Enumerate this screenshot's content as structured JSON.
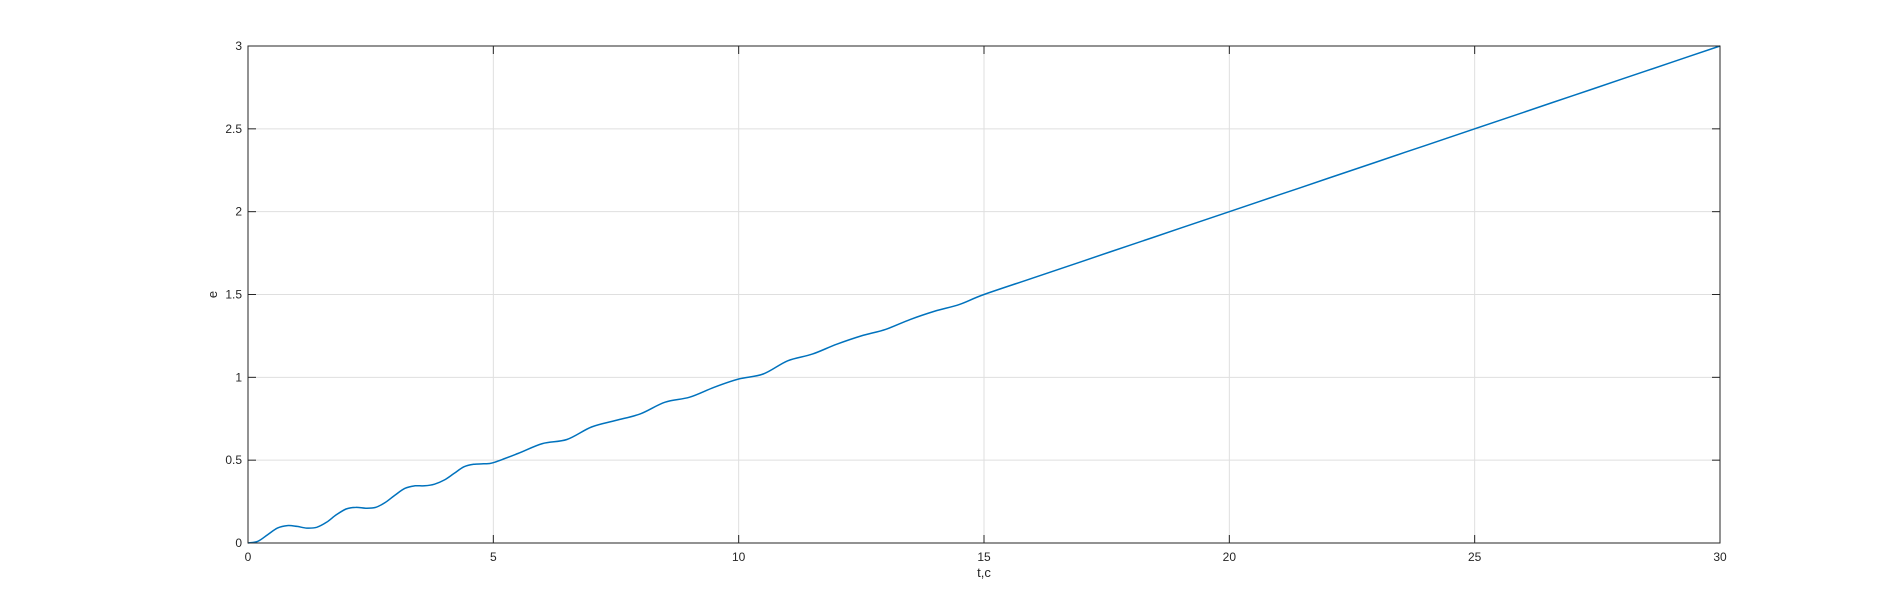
{
  "chart_data": {
    "type": "line",
    "title": "",
    "xlabel": "t,c",
    "ylabel": "e",
    "xlim": [
      0,
      30
    ],
    "ylim": [
      0,
      3
    ],
    "xticks": [
      0,
      5,
      10,
      15,
      20,
      25,
      30
    ],
    "yticks": [
      0,
      0.5,
      1,
      1.5,
      2,
      2.5,
      3
    ],
    "xtick_labels": [
      "0",
      "5",
      "10",
      "15",
      "20",
      "25",
      "30"
    ],
    "ytick_labels": [
      "0",
      "0.5",
      "1",
      "1.5",
      "2",
      "2.5",
      "3"
    ],
    "grid": true,
    "legend": "none",
    "series": [
      {
        "color": "#0072BD",
        "x": [
          0,
          0.2,
          0.4,
          0.6,
          0.8,
          1.0,
          1.2,
          1.4,
          1.6,
          1.8,
          2.0,
          2.2,
          2.4,
          2.6,
          2.8,
          3.0,
          3.2,
          3.4,
          3.6,
          3.8,
          4.0,
          4.2,
          4.4,
          4.6,
          4.8,
          5.0,
          5.5,
          6.0,
          6.5,
          7.0,
          7.5,
          8.0,
          8.5,
          9.0,
          9.5,
          10.0,
          10.5,
          11.0,
          11.5,
          12.0,
          12.5,
          13.0,
          13.5,
          14.0,
          14.5,
          15.0,
          16.0,
          17.0,
          18.0,
          19.0,
          20.0,
          21.0,
          22.0,
          23.0,
          24.0,
          25.0,
          26.0,
          27.0,
          28.0,
          29.0,
          30.0
        ],
        "y": [
          0,
          0.01,
          0.05,
          0.09,
          0.105,
          0.1,
          0.09,
          0.095,
          0.125,
          0.17,
          0.205,
          0.215,
          0.21,
          0.215,
          0.245,
          0.29,
          0.33,
          0.345,
          0.345,
          0.355,
          0.38,
          0.42,
          0.46,
          0.475,
          0.478,
          0.485,
          0.54,
          0.6,
          0.625,
          0.7,
          0.74,
          0.78,
          0.85,
          0.88,
          0.94,
          0.99,
          1.02,
          1.1,
          1.14,
          1.2,
          1.25,
          1.29,
          1.35,
          1.4,
          1.44,
          1.5,
          1.6,
          1.7,
          1.8,
          1.9,
          2.0,
          2.1,
          2.2,
          2.3,
          2.4,
          2.5,
          2.6,
          2.7,
          2.8,
          2.9,
          3.0
        ]
      }
    ]
  }
}
